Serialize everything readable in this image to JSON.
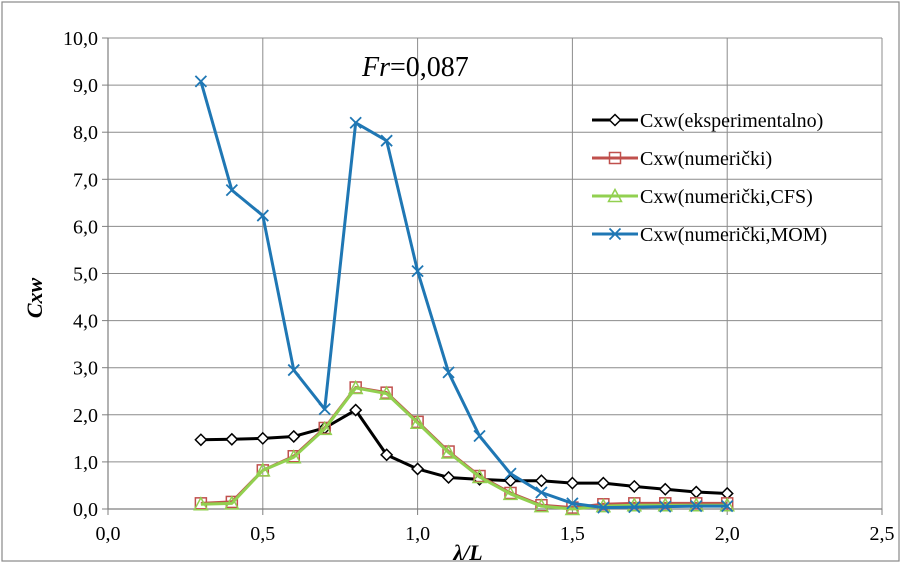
{
  "chart_data": {
    "type": "line",
    "title": "",
    "annotation": {
      "italic": "Fr",
      "rest": "=0,087"
    },
    "xlabel": "λ/L",
    "ylabel": "Cxw",
    "xlim": [
      0,
      2.5
    ],
    "ylim": [
      0,
      10
    ],
    "xticks": [
      "0,0",
      "0,5",
      "1,0",
      "1,5",
      "2,0",
      "2,5"
    ],
    "yticks": [
      "0,0",
      "1,0",
      "2,0",
      "3,0",
      "4,0",
      "5,0",
      "6,0",
      "7,0",
      "8,0",
      "9,0",
      "10,0"
    ],
    "grid": "horizontal and vertical major",
    "legend_position": "right",
    "x": [
      0.3,
      0.4,
      0.5,
      0.6,
      0.7,
      0.8,
      0.9,
      1.0,
      1.1,
      1.2,
      1.3,
      1.4,
      1.5,
      1.6,
      1.7,
      1.8,
      1.9,
      2.0
    ],
    "series": [
      {
        "name": "Cxw(eksperimentalno)",
        "color": "#000000",
        "marker": "diamond",
        "values": [
          1.47,
          1.48,
          1.5,
          1.54,
          1.72,
          2.1,
          1.15,
          0.85,
          0.67,
          0.63,
          0.6,
          0.6,
          0.55,
          0.55,
          0.48,
          0.42,
          0.36,
          0.33
        ]
      },
      {
        "name": "Cxw(numerički)",
        "color": "#c0504d",
        "marker": "square",
        "values": [
          0.12,
          0.15,
          0.82,
          1.12,
          1.72,
          2.58,
          2.47,
          1.85,
          1.22,
          0.7,
          0.34,
          0.08,
          0.03,
          0.1,
          0.12,
          0.12,
          0.12,
          0.12
        ]
      },
      {
        "name": "Cxw(numerički,CFS)",
        "color": "#92d050",
        "marker": "triangle",
        "values": [
          0.1,
          0.12,
          0.82,
          1.1,
          1.7,
          2.57,
          2.45,
          1.83,
          1.2,
          0.68,
          0.32,
          0.06,
          0.0,
          0.06,
          0.08,
          0.08,
          0.08,
          0.08
        ]
      },
      {
        "name": "Cxw(numerički,MOM)",
        "color": "#1f77b4",
        "marker": "x",
        "values": [
          9.08,
          6.77,
          6.23,
          2.95,
          2.12,
          8.2,
          7.82,
          5.05,
          2.9,
          1.55,
          0.75,
          0.35,
          0.12,
          0.03,
          0.04,
          0.05,
          0.06,
          0.06
        ]
      }
    ]
  }
}
